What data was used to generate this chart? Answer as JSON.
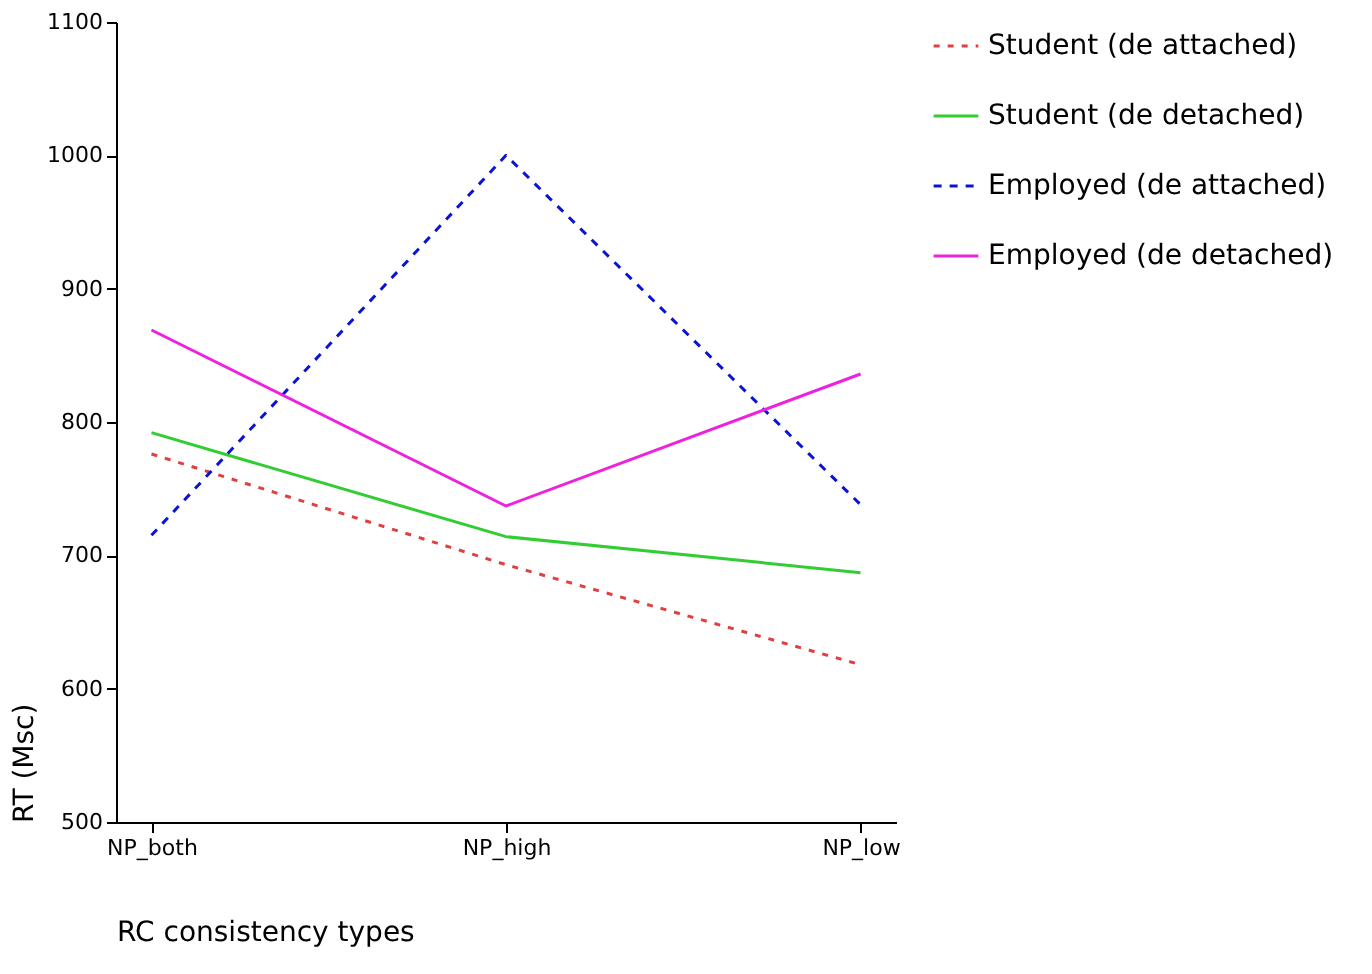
{
  "chart_data": {
    "type": "line",
    "xlabel": "RC consistency types",
    "ylabel": "RT (Msc)",
    "categories": [
      "NP_both",
      "NP_high",
      "NP_low"
    ],
    "ylim": [
      500,
      1100
    ],
    "yticks": [
      500,
      600,
      700,
      800,
      900,
      {
        "value": 1000,
        "label": "1000"
      },
      {
        "value": 1100,
        "label": "1100"
      }
    ],
    "grid": false,
    "legend": "right",
    "marker": "none",
    "series": [
      {
        "name": "Student (de attached)",
        "color": "#e04040",
        "line_style": "dashed",
        "values": [
          776,
          693,
          618
        ]
      },
      {
        "name": "Student (de detached)",
        "color": "#33cc33",
        "line_style": "solid",
        "values": [
          792,
          714,
          687
        ]
      },
      {
        "name": "Employed (de attached)",
        "color": "#0a14d2",
        "line_style": "dotted",
        "values": [
          715,
          1000,
          738
        ]
      },
      {
        "name": "Employed (de detached)",
        "color": "#ee22dd",
        "line_style": "solid",
        "values": [
          869,
          737,
          836
        ]
      }
    ]
  }
}
